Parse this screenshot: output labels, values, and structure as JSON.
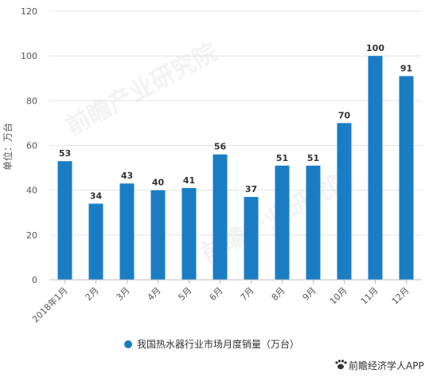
{
  "chart_data": {
    "type": "bar",
    "categories": [
      "2018年1月",
      "2月",
      "3月",
      "4月",
      "5月",
      "6月",
      "7月",
      "8月",
      "9月",
      "10月",
      "11月",
      "12月"
    ],
    "series": [
      {
        "name": "我国热水器行业市场月度销量（万台）",
        "values": [
          53,
          34,
          43,
          40,
          41,
          56,
          37,
          51,
          51,
          70,
          100,
          91
        ],
        "color": "#1a7dc4"
      }
    ],
    "ylabel": "单位：万台",
    "ylim": [
      0,
      120
    ],
    "yticks": [
      0,
      20,
      40,
      60,
      80,
      100,
      120
    ],
    "grid": true,
    "legend": "bottom-center",
    "data_labels": true
  },
  "watermark": "前瞻产业研究院",
  "credit": {
    "icon": "paw-icon",
    "text": "前瞻经济学人APP"
  },
  "colors": {
    "bar": "#1a7dc4",
    "grid": "#e4e4e4",
    "axis": "#bdbdbd"
  }
}
